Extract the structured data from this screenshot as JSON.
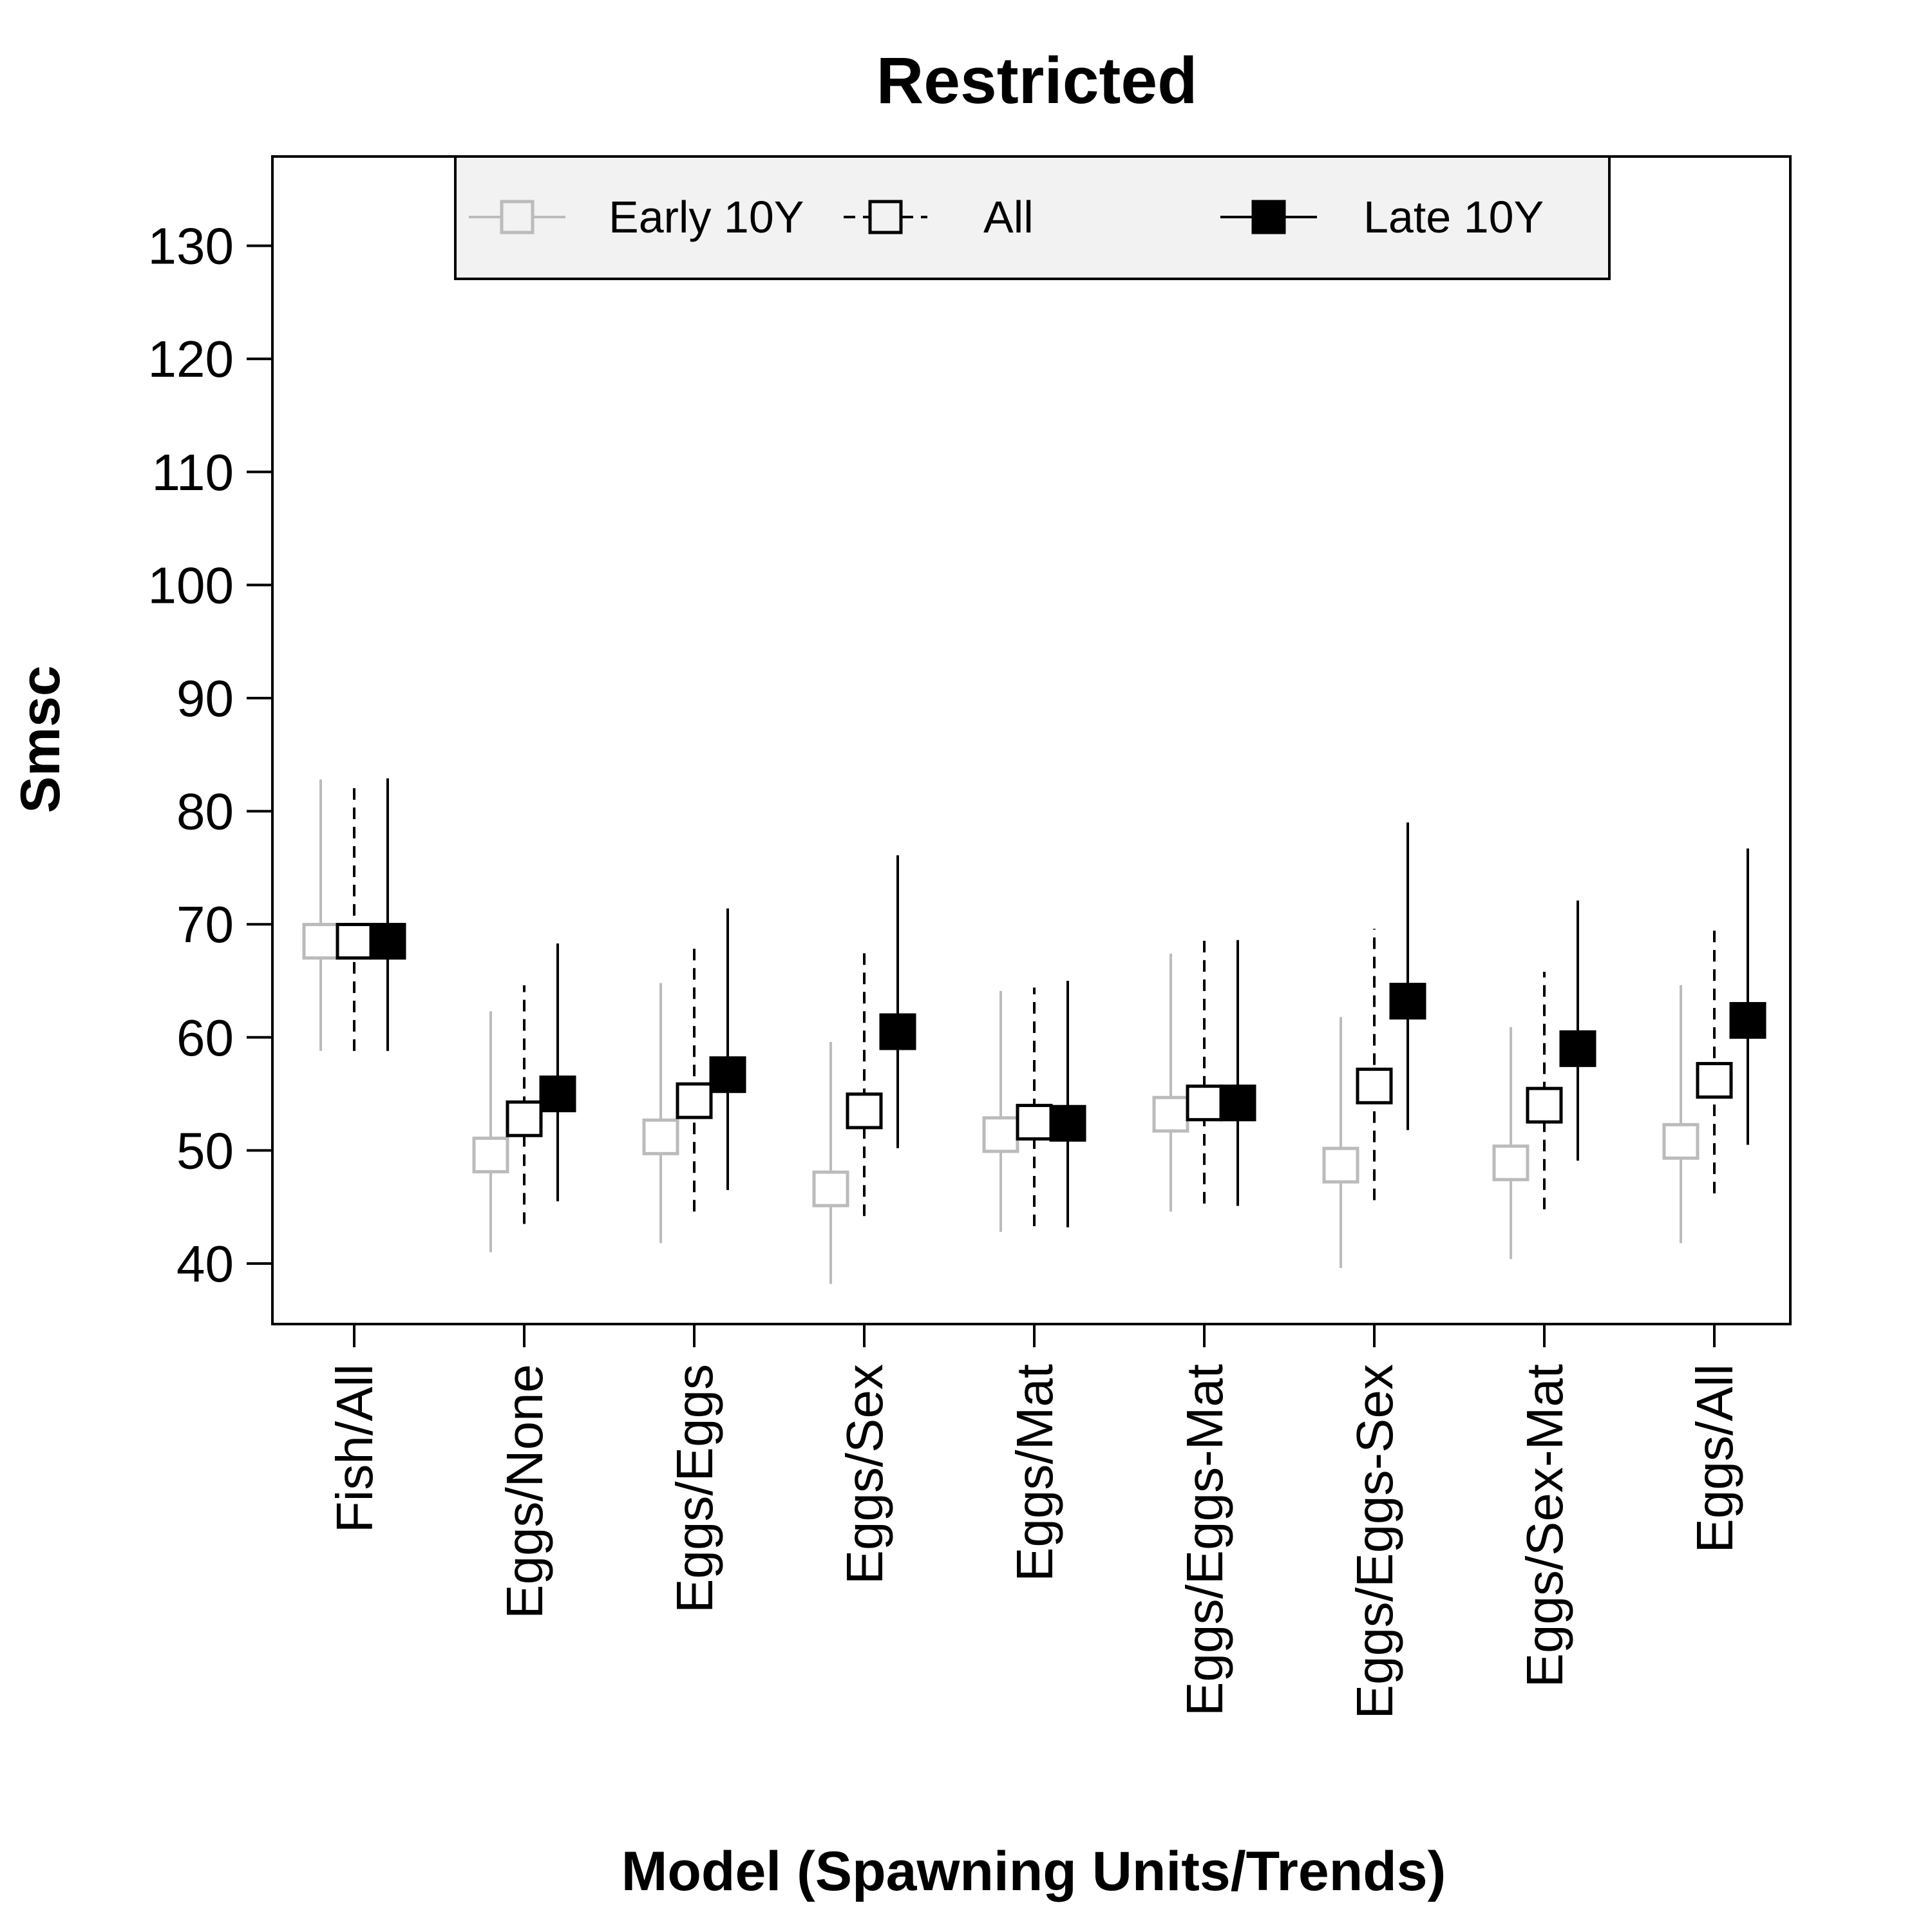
{
  "chart_data": {
    "type": "scatter",
    "title": "Restricted",
    "xlabel": "Model (Spawning Units/Trends)",
    "ylabel": "Smsc",
    "ylim": [
      35,
      138
    ],
    "yticks": [
      40,
      50,
      60,
      70,
      80,
      90,
      100,
      110,
      120,
      130
    ],
    "categories": [
      "Fish/All",
      "Eggs/None",
      "Eggs/Eggs",
      "Eggs/Sex",
      "Eggs/Mat",
      "Eggs/Eggs-Mat",
      "Eggs/Eggs-Sex",
      "Eggs/Sex-Mat",
      "Eggs/All"
    ],
    "legend_position": "top-center",
    "series": [
      {
        "name": "Early 10Y",
        "color": "#bbbbbb",
        "marker": "open-square",
        "line": "solid",
        "values": [
          68.5,
          49.6,
          51.2,
          46.6,
          51.4,
          53.2,
          48.7,
          48.9,
          50.8
        ],
        "lower": [
          58.8,
          41.0,
          41.8,
          38.2,
          42.8,
          44.6,
          39.6,
          40.4,
          41.8
        ],
        "upper": [
          82.8,
          62.3,
          64.8,
          59.6,
          64.1,
          67.4,
          61.8,
          60.9,
          64.6
        ]
      },
      {
        "name": "All",
        "color": "#000000",
        "marker": "open-square",
        "line": "dashed",
        "values": [
          68.5,
          52.8,
          54.4,
          53.5,
          52.5,
          54.2,
          55.7,
          54.0,
          56.2
        ],
        "lower": [
          58.8,
          43.5,
          44.6,
          44.2,
          43.3,
          45.3,
          45.6,
          44.8,
          46.2
        ],
        "upper": [
          82.6,
          64.6,
          68.4,
          67.8,
          64.4,
          68.6,
          69.6,
          65.8,
          70.0
        ]
      },
      {
        "name": "Late 10Y",
        "color": "#000000",
        "marker": "filled-square",
        "line": "solid",
        "values": [
          68.5,
          55.0,
          56.7,
          60.5,
          52.4,
          54.2,
          63.2,
          59.0,
          61.5
        ],
        "lower": [
          58.8,
          45.5,
          46.5,
          50.2,
          43.2,
          45.1,
          51.8,
          49.1,
          50.5
        ],
        "upper": [
          82.9,
          68.3,
          71.4,
          76.1,
          65.0,
          68.6,
          79.0,
          72.1,
          76.7
        ]
      }
    ]
  }
}
